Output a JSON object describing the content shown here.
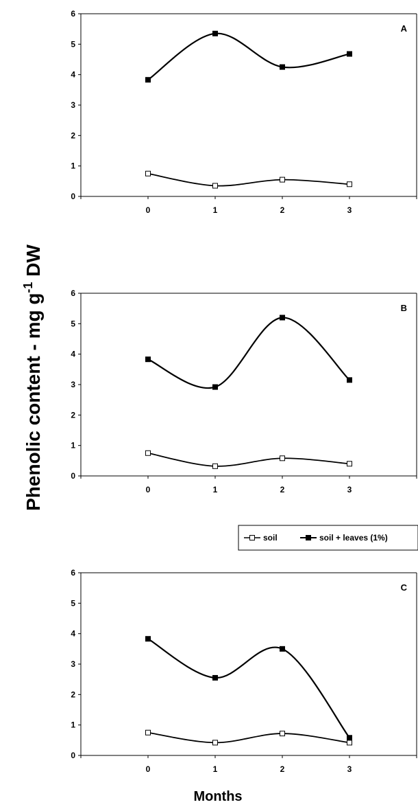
{
  "figure": {
    "ylabel_main": "Phenolic content - mg g",
    "ylabel_sup": "-1",
    "ylabel_end": " DW",
    "xlabel": "Months"
  },
  "chart_data": [
    {
      "type": "line",
      "panel_label": "A",
      "x": [
        0,
        1,
        2,
        3
      ],
      "ylim": [
        0,
        6
      ],
      "yticks": [
        0,
        1,
        2,
        3,
        4,
        5,
        6
      ],
      "series": [
        {
          "name": "soil",
          "marker": "open-square",
          "values": [
            0.75,
            0.35,
            0.55,
            0.4
          ]
        },
        {
          "name": "soil + leaves (1%)",
          "marker": "filled-square",
          "values": [
            3.83,
            5.35,
            4.25,
            4.68
          ]
        }
      ]
    },
    {
      "type": "line",
      "panel_label": "B",
      "x": [
        0,
        1,
        2,
        3
      ],
      "ylim": [
        0,
        6
      ],
      "yticks": [
        0,
        1,
        2,
        3,
        4,
        5,
        6
      ],
      "series": [
        {
          "name": "soil",
          "marker": "open-square",
          "values": [
            0.75,
            0.32,
            0.58,
            0.4
          ]
        },
        {
          "name": "soil + leaves (1%)",
          "marker": "filled-square",
          "values": [
            3.83,
            2.92,
            5.2,
            3.15
          ]
        }
      ]
    },
    {
      "type": "line",
      "panel_label": "C",
      "x": [
        0,
        1,
        2,
        3
      ],
      "ylim": [
        0,
        6
      ],
      "yticks": [
        0,
        1,
        2,
        3,
        4,
        5,
        6
      ],
      "legend": {
        "position": "top-right",
        "entries": [
          "soil",
          "soil + leaves (1%)"
        ]
      },
      "series": [
        {
          "name": "soil",
          "marker": "open-square",
          "values": [
            0.75,
            0.42,
            0.72,
            0.42
          ]
        },
        {
          "name": "soil + leaves (1%)",
          "marker": "filled-square",
          "values": [
            3.83,
            2.55,
            3.5,
            0.58
          ]
        }
      ]
    }
  ]
}
